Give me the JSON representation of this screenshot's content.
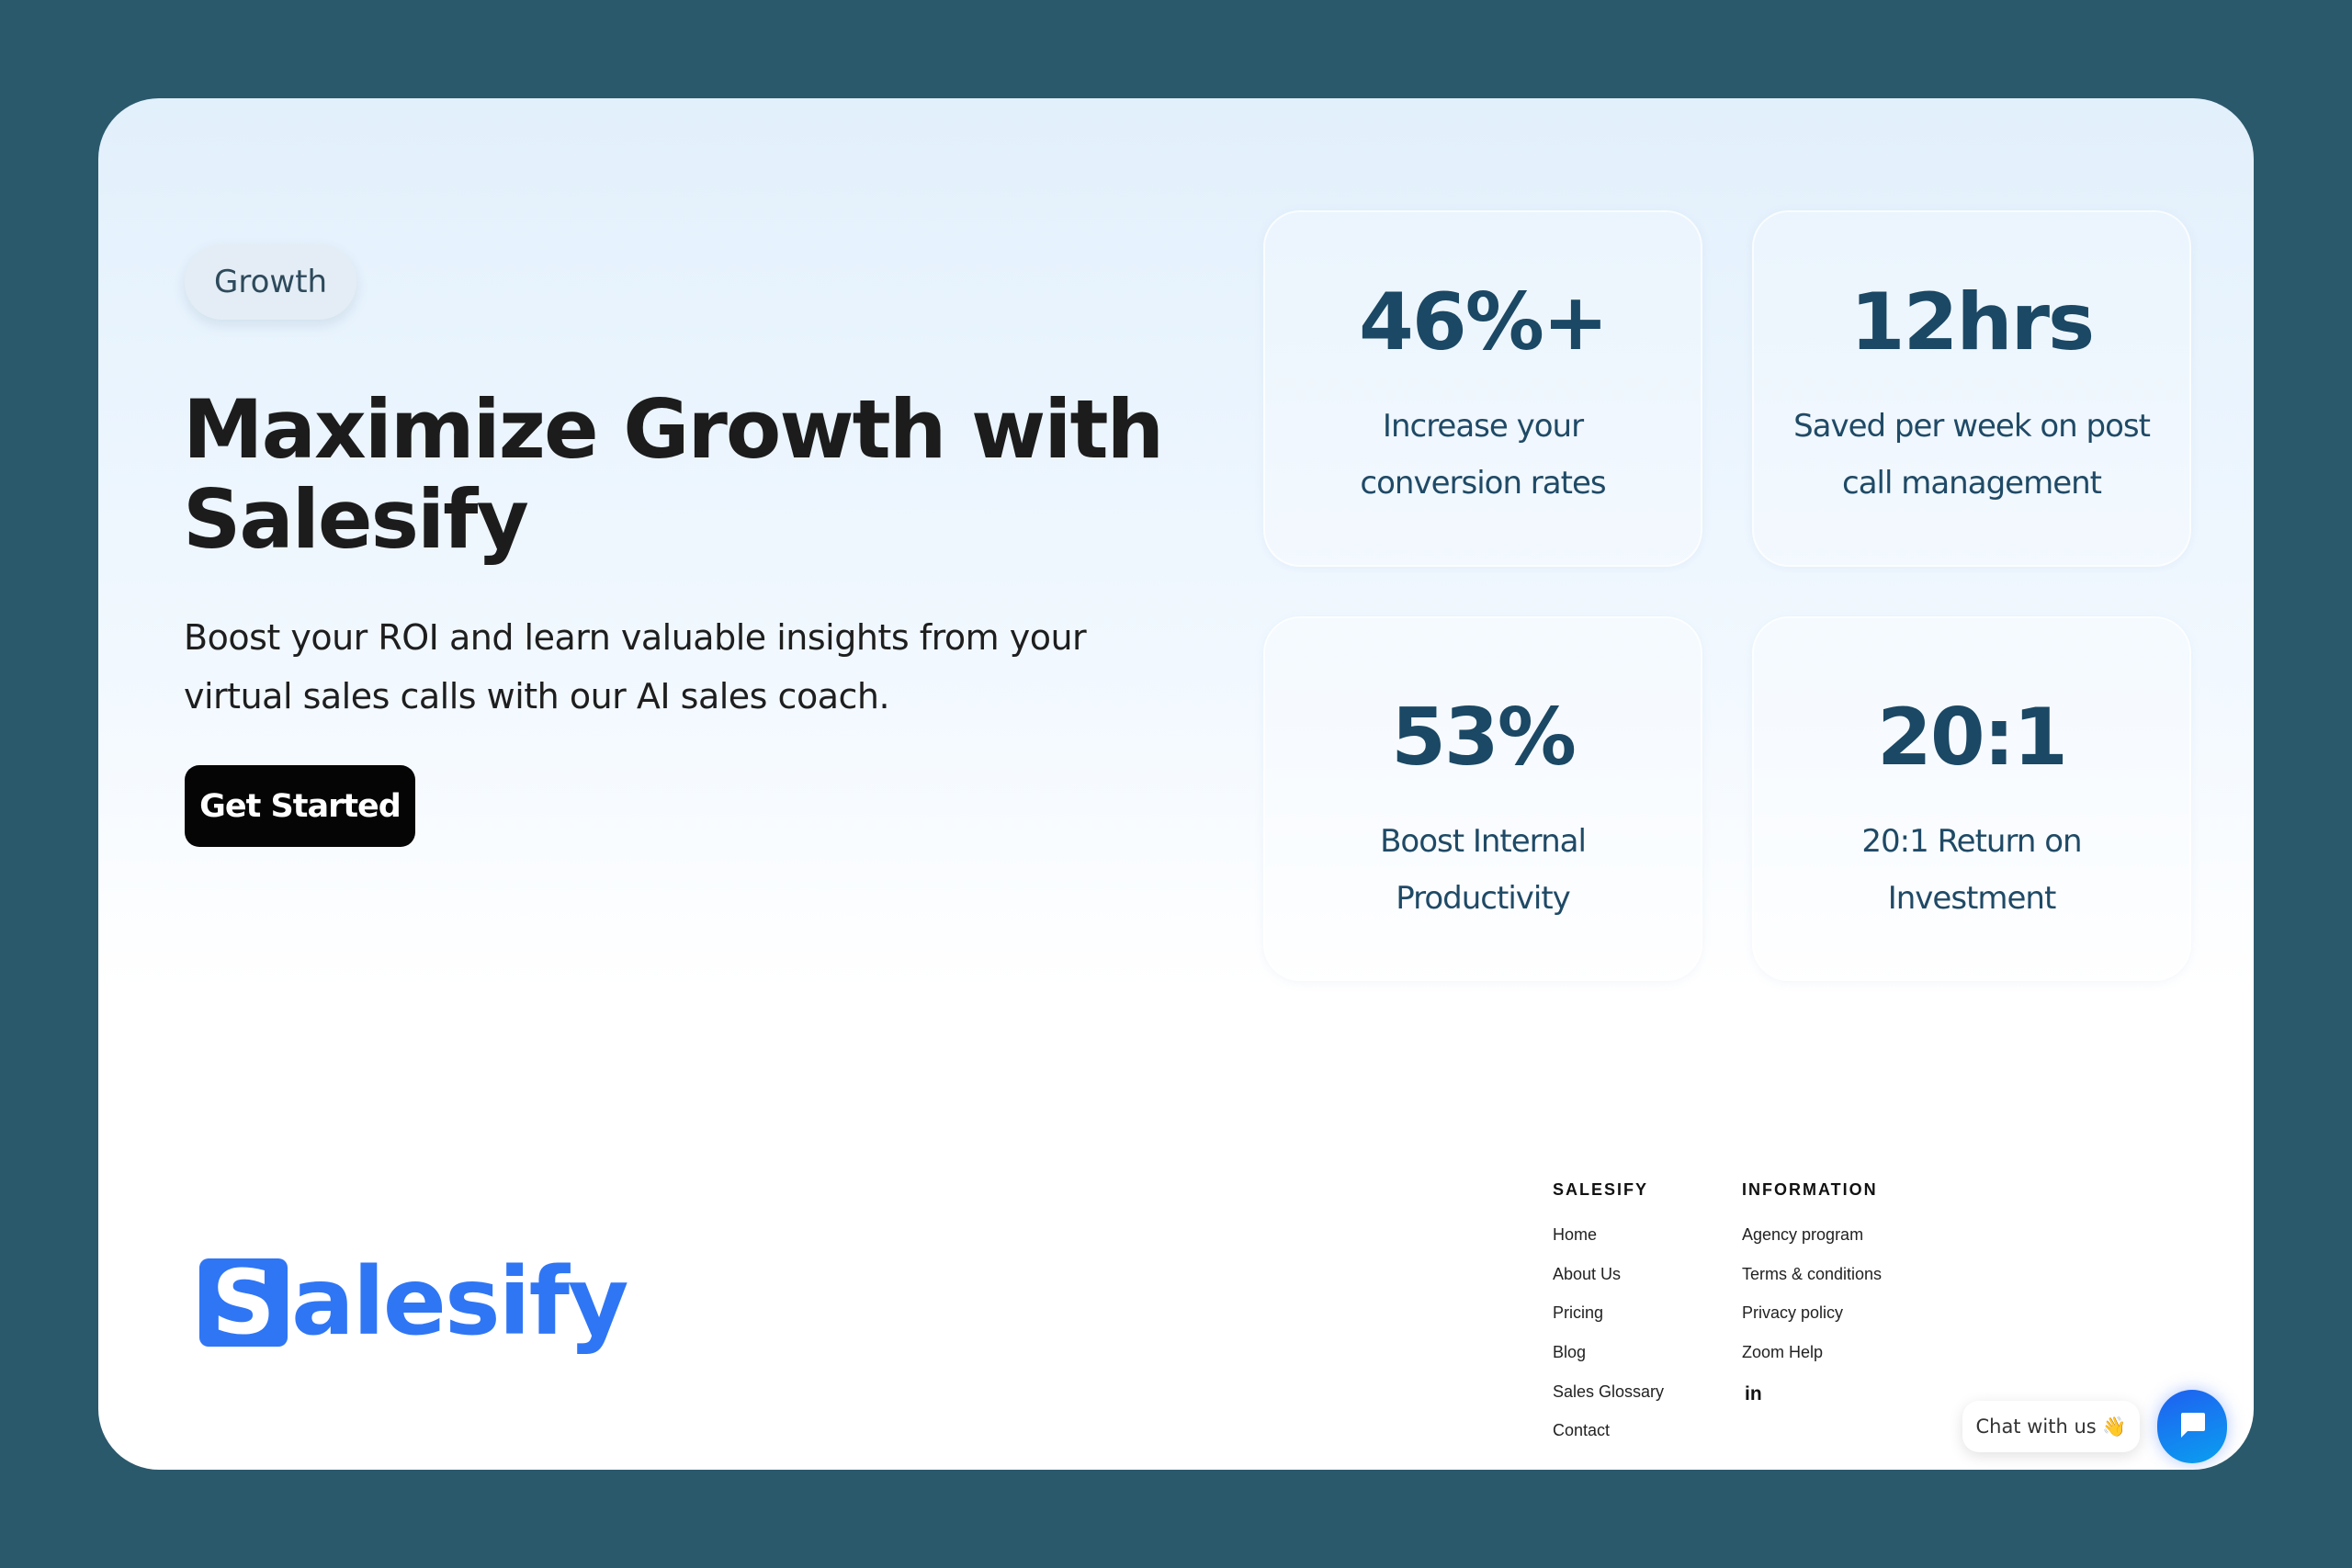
{
  "hero": {
    "badge": "Growth",
    "title": "Maximize Growth with Salesify",
    "description": "Boost your ROI and learn valuable insights from your virtual sales calls with our AI sales coach.",
    "cta": "Get Started"
  },
  "stats": [
    {
      "value": "46%+",
      "label": "Increase your conversion rates"
    },
    {
      "value": "12hrs",
      "label": "Saved per week on post call management"
    },
    {
      "value": "53%",
      "label": "Boost Internal Productivity"
    },
    {
      "value": "20:1",
      "label": "20:1 Return on Investment"
    }
  ],
  "footer": {
    "logo_text": "Salesify",
    "col1": {
      "heading": "SALESIFY",
      "links": [
        "Home",
        "About Us",
        "Pricing",
        "Blog",
        "Sales Glossary",
        "Contact"
      ]
    },
    "col2": {
      "heading": "INFORMATION",
      "links": [
        "Agency program",
        "Terms & conditions",
        "Privacy policy",
        "Zoom Help"
      ]
    },
    "social_icon": "linkedin-icon",
    "social_text": "in"
  },
  "chat": {
    "label": "Chat with us 👋",
    "icon": "chat-bubble-icon"
  },
  "colors": {
    "background": "#2b596c",
    "brand": "#2f76f5",
    "stat_text": "#1b4864"
  }
}
